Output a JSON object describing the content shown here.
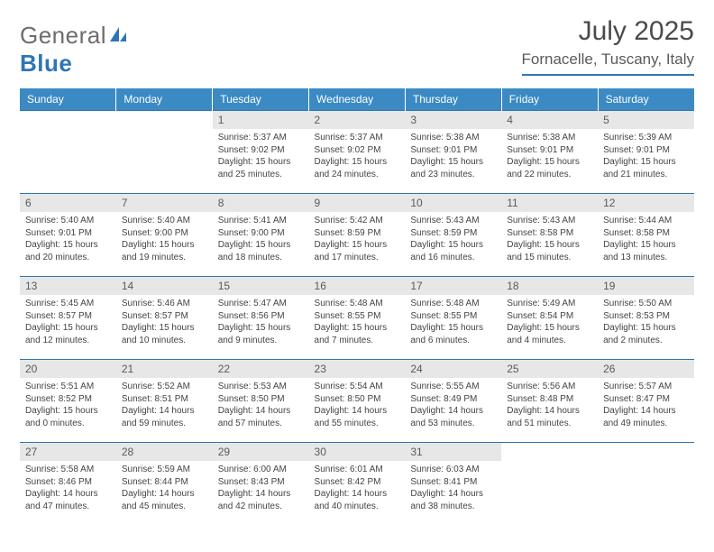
{
  "logo": {
    "part1": "General",
    "part2": "Blue"
  },
  "title": "July 2025",
  "location": "Fornacelle, Tuscany, Italy",
  "colors": {
    "header": "#3b8ac4",
    "rule": "#2e75b6",
    "dayfill": "#e7e7e7",
    "logo_gray": "#6d6d6d",
    "logo_blue": "#2e75b6"
  },
  "daynames": [
    "Sunday",
    "Monday",
    "Tuesday",
    "Wednesday",
    "Thursday",
    "Friday",
    "Saturday"
  ],
  "weeks": [
    [
      {
        "blank": true
      },
      {
        "blank": true
      },
      {
        "n": "1",
        "sr": "5:37 AM",
        "ss": "9:02 PM",
        "dl": "15 hours and 25 minutes."
      },
      {
        "n": "2",
        "sr": "5:37 AM",
        "ss": "9:02 PM",
        "dl": "15 hours and 24 minutes."
      },
      {
        "n": "3",
        "sr": "5:38 AM",
        "ss": "9:01 PM",
        "dl": "15 hours and 23 minutes."
      },
      {
        "n": "4",
        "sr": "5:38 AM",
        "ss": "9:01 PM",
        "dl": "15 hours and 22 minutes."
      },
      {
        "n": "5",
        "sr": "5:39 AM",
        "ss": "9:01 PM",
        "dl": "15 hours and 21 minutes."
      }
    ],
    [
      {
        "n": "6",
        "sr": "5:40 AM",
        "ss": "9:01 PM",
        "dl": "15 hours and 20 minutes."
      },
      {
        "n": "7",
        "sr": "5:40 AM",
        "ss": "9:00 PM",
        "dl": "15 hours and 19 minutes."
      },
      {
        "n": "8",
        "sr": "5:41 AM",
        "ss": "9:00 PM",
        "dl": "15 hours and 18 minutes."
      },
      {
        "n": "9",
        "sr": "5:42 AM",
        "ss": "8:59 PM",
        "dl": "15 hours and 17 minutes."
      },
      {
        "n": "10",
        "sr": "5:43 AM",
        "ss": "8:59 PM",
        "dl": "15 hours and 16 minutes."
      },
      {
        "n": "11",
        "sr": "5:43 AM",
        "ss": "8:58 PM",
        "dl": "15 hours and 15 minutes."
      },
      {
        "n": "12",
        "sr": "5:44 AM",
        "ss": "8:58 PM",
        "dl": "15 hours and 13 minutes."
      }
    ],
    [
      {
        "n": "13",
        "sr": "5:45 AM",
        "ss": "8:57 PM",
        "dl": "15 hours and 12 minutes."
      },
      {
        "n": "14",
        "sr": "5:46 AM",
        "ss": "8:57 PM",
        "dl": "15 hours and 10 minutes."
      },
      {
        "n": "15",
        "sr": "5:47 AM",
        "ss": "8:56 PM",
        "dl": "15 hours and 9 minutes."
      },
      {
        "n": "16",
        "sr": "5:48 AM",
        "ss": "8:55 PM",
        "dl": "15 hours and 7 minutes."
      },
      {
        "n": "17",
        "sr": "5:48 AM",
        "ss": "8:55 PM",
        "dl": "15 hours and 6 minutes."
      },
      {
        "n": "18",
        "sr": "5:49 AM",
        "ss": "8:54 PM",
        "dl": "15 hours and 4 minutes."
      },
      {
        "n": "19",
        "sr": "5:50 AM",
        "ss": "8:53 PM",
        "dl": "15 hours and 2 minutes."
      }
    ],
    [
      {
        "n": "20",
        "sr": "5:51 AM",
        "ss": "8:52 PM",
        "dl": "15 hours and 0 minutes."
      },
      {
        "n": "21",
        "sr": "5:52 AM",
        "ss": "8:51 PM",
        "dl": "14 hours and 59 minutes."
      },
      {
        "n": "22",
        "sr": "5:53 AM",
        "ss": "8:50 PM",
        "dl": "14 hours and 57 minutes."
      },
      {
        "n": "23",
        "sr": "5:54 AM",
        "ss": "8:50 PM",
        "dl": "14 hours and 55 minutes."
      },
      {
        "n": "24",
        "sr": "5:55 AM",
        "ss": "8:49 PM",
        "dl": "14 hours and 53 minutes."
      },
      {
        "n": "25",
        "sr": "5:56 AM",
        "ss": "8:48 PM",
        "dl": "14 hours and 51 minutes."
      },
      {
        "n": "26",
        "sr": "5:57 AM",
        "ss": "8:47 PM",
        "dl": "14 hours and 49 minutes."
      }
    ],
    [
      {
        "n": "27",
        "sr": "5:58 AM",
        "ss": "8:46 PM",
        "dl": "14 hours and 47 minutes."
      },
      {
        "n": "28",
        "sr": "5:59 AM",
        "ss": "8:44 PM",
        "dl": "14 hours and 45 minutes."
      },
      {
        "n": "29",
        "sr": "6:00 AM",
        "ss": "8:43 PM",
        "dl": "14 hours and 42 minutes."
      },
      {
        "n": "30",
        "sr": "6:01 AM",
        "ss": "8:42 PM",
        "dl": "14 hours and 40 minutes."
      },
      {
        "n": "31",
        "sr": "6:03 AM",
        "ss": "8:41 PM",
        "dl": "14 hours and 38 minutes."
      },
      {
        "blank": true
      },
      {
        "blank": true
      }
    ]
  ],
  "labels": {
    "sunrise": "Sunrise:",
    "sunset": "Sunset:",
    "daylight": "Daylight:"
  }
}
